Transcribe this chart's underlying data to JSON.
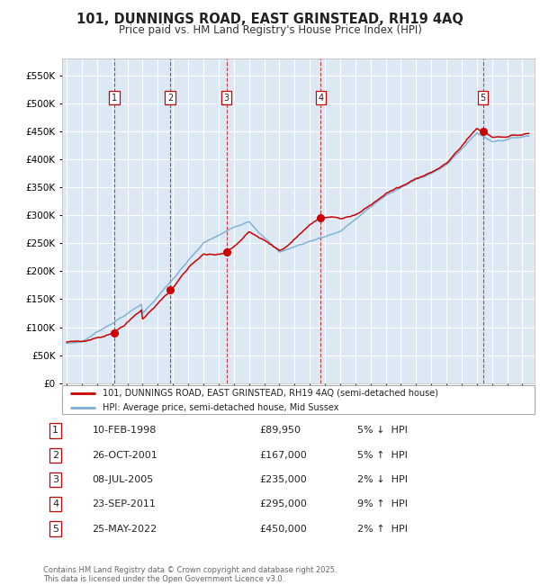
{
  "title": "101, DUNNINGS ROAD, EAST GRINSTEAD, RH19 4AQ",
  "subtitle": "Price paid vs. HM Land Registry's House Price Index (HPI)",
  "legend_line1": "101, DUNNINGS ROAD, EAST GRINSTEAD, RH19 4AQ (semi-detached house)",
  "legend_line2": "HPI: Average price, semi-detached house, Mid Sussex",
  "footer": "Contains HM Land Registry data © Crown copyright and database right 2025.\nThis data is licensed under the Open Government Licence v3.0.",
  "sales": [
    {
      "num": 1,
      "date": "10-FEB-1998",
      "price": 89950,
      "pct": "5%",
      "dir": "↓",
      "year": 1998.12
    },
    {
      "num": 2,
      "date": "26-OCT-2001",
      "price": 167000,
      "pct": "5%",
      "dir": "↑",
      "year": 2001.82
    },
    {
      "num": 3,
      "date": "08-JUL-2005",
      "price": 235000,
      "pct": "2%",
      "dir": "↓",
      "year": 2005.52
    },
    {
      "num": 4,
      "date": "23-SEP-2011",
      "price": 295000,
      "pct": "9%",
      "dir": "↑",
      "year": 2011.73
    },
    {
      "num": 5,
      "date": "25-MAY-2022",
      "price": 450000,
      "pct": "2%",
      "dir": "↑",
      "year": 2022.4
    }
  ],
  "hpi_color": "#7bafd4",
  "price_color": "#cc0000",
  "dot_color": "#cc0000",
  "vline_color": "#cc0000",
  "plot_bg": "#dce9f5",
  "grid_color": "#ffffff",
  "ylim": [
    0,
    580000
  ],
  "yticks": [
    0,
    50000,
    100000,
    150000,
    200000,
    250000,
    300000,
    350000,
    400000,
    450000,
    500000,
    550000
  ],
  "xlim_start": 1994.7,
  "xlim_end": 2025.8
}
